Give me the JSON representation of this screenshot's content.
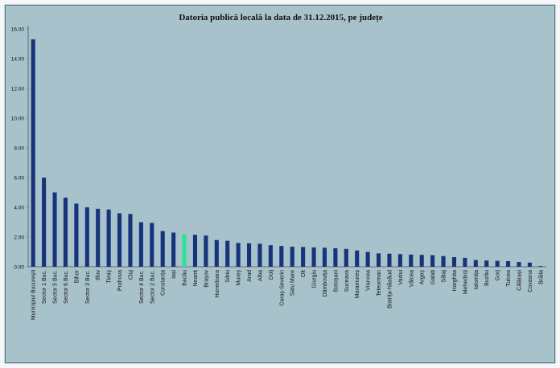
{
  "chart_data": {
    "type": "bar",
    "title": "Datoria publică locală la data de 31.12.2015, pe județe",
    "xlabel": "",
    "ylabel": "",
    "ylim": [
      0,
      16
    ],
    "yticks": [
      "0.00",
      "2.00",
      "4.00",
      "6.00",
      "8.00",
      "10.00",
      "12.00",
      "14.00",
      "16.00"
    ],
    "grid": false,
    "bar_color": "#17347a",
    "highlight_color": "#2de39a",
    "highlight_category": "Bacău",
    "categories": [
      "Municipiul București",
      "Sector 1 Buc.",
      "Sector 5 Buc.",
      "Sector 6 Buc.",
      "Bihor",
      "Sector 3 Buc.",
      "Ilfov",
      "Timiș",
      "Prahova",
      "Cluj",
      "Sector 4 Buc.",
      "Sector 2 Buc.",
      "Constanța",
      "Iași",
      "Bacău",
      "Neamț",
      "Brașov",
      "Hunedoara",
      "Sibiu",
      "Mureș",
      "Arad",
      "Alba",
      "Dolj",
      "Caraș-Severin",
      "Satu Mare",
      "Olt",
      "Giurgiu",
      "Dâmbovița",
      "Botoșani",
      "Suceava",
      "Maramureș",
      "Vrancea",
      "Teleorman",
      "Bistrița-Năsăud",
      "Vaslui",
      "Vâlcea",
      "Argeș",
      "Galați",
      "Sălaj",
      "Harghita",
      "Mehedinți",
      "Ialomița",
      "Buzău",
      "Gorj",
      "Tulcea",
      "Călărași",
      "Covasna",
      "Brăila"
    ],
    "values": [
      15.3,
      6.0,
      5.0,
      4.65,
      4.25,
      4.0,
      3.9,
      3.85,
      3.6,
      3.55,
      3.0,
      2.95,
      2.4,
      2.3,
      2.2,
      2.15,
      2.1,
      1.8,
      1.75,
      1.6,
      1.58,
      1.55,
      1.45,
      1.4,
      1.35,
      1.33,
      1.3,
      1.28,
      1.25,
      1.2,
      1.1,
      1.0,
      0.9,
      0.88,
      0.85,
      0.82,
      0.8,
      0.78,
      0.72,
      0.65,
      0.6,
      0.45,
      0.42,
      0.4,
      0.38,
      0.32,
      0.28,
      0.05
    ]
  }
}
